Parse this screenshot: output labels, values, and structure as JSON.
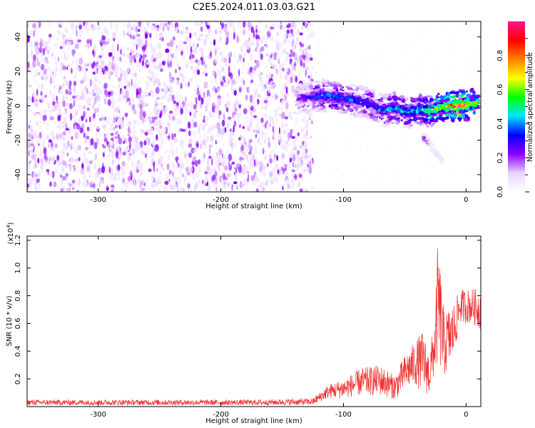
{
  "title": "C2E5.2024.011.03.03.G21",
  "chart_data": [
    {
      "type": "heatmap",
      "name": "spectrogram",
      "xlabel": "Height of straight line (km)",
      "ylabel": "Frequency (Hz)",
      "xlim": [
        -358,
        12
      ],
      "ylim": [
        -50,
        49
      ],
      "xticks": [
        -300,
        -200,
        -100,
        0
      ],
      "yticks": [
        -40,
        -20,
        0,
        20,
        40
      ],
      "colorbar": {
        "label": "Normalized spectral amplitude",
        "range": [
          0,
          1
        ],
        "ticks": [
          0.0,
          0.2,
          0.4,
          0.6,
          0.8
        ],
        "tick_labels": [
          "0.0",
          "0.2",
          "0.4",
          "0.6",
          "0.8"
        ],
        "colors": [
          "#ffffff",
          "#e8d4ff",
          "#8b00ff",
          "#0000ff",
          "#00e5ff",
          "#00ff00",
          "#ffff00",
          "#ff7f00",
          "#ff0000",
          "#ff1493"
        ]
      },
      "noise_region": {
        "x_range": [
          -358,
          -125
        ],
        "freq_range": [
          -50,
          49
        ]
      },
      "signal_track": [
        {
          "x": -138,
          "freq": 4,
          "amp": 0.22
        },
        {
          "x": -128,
          "freq": 5,
          "amp": 0.3
        },
        {
          "x": -118,
          "freq": 6,
          "amp": 0.4
        },
        {
          "x": -108,
          "freq": 5,
          "amp": 0.42
        },
        {
          "x": -98,
          "freq": 4,
          "amp": 0.38
        },
        {
          "x": -88,
          "freq": 3,
          "amp": 0.35
        },
        {
          "x": -78,
          "freq": 1,
          "amp": 0.36
        },
        {
          "x": -68,
          "freq": -3,
          "amp": 0.4
        },
        {
          "x": -58,
          "freq": -1,
          "amp": 0.44
        },
        {
          "x": -48,
          "freq": -4,
          "amp": 0.46
        },
        {
          "x": -38,
          "freq": -2,
          "amp": 0.5
        },
        {
          "x": -30,
          "freq": -3,
          "amp": 0.58
        },
        {
          "x": -22,
          "freq": -1,
          "amp": 0.7
        },
        {
          "x": -14,
          "freq": 0,
          "amp": 0.82
        },
        {
          "x": -6,
          "freq": 0,
          "amp": 0.92
        },
        {
          "x": 2,
          "freq": 1,
          "amp": 0.8
        },
        {
          "x": 10,
          "freq": 2,
          "amp": 0.6
        }
      ],
      "secondary_track": [
        {
          "x": -36,
          "freq": -17,
          "amp": 0.4
        },
        {
          "x": -30,
          "freq": -22,
          "amp": 0.12
        },
        {
          "x": -25,
          "freq": -27,
          "amp": 0.1
        },
        {
          "x": -19,
          "freq": -32,
          "amp": 0.1
        }
      ]
    },
    {
      "type": "line",
      "name": "snr",
      "xlabel": "Height of straight line (km)",
      "ylabel": "SNR (10 * v/v)",
      "scale_label": "(x10",
      "scale_exponent": "4",
      "scale_close": ")",
      "xlim": [
        -358,
        12
      ],
      "ylim": [
        0,
        1.23
      ],
      "xticks": [
        -300,
        -200,
        -100,
        0
      ],
      "yticks": [
        0.2,
        0.4,
        0.6,
        0.8,
        1.0,
        1.2
      ],
      "line_color": "#ee3030",
      "envelope": [
        {
          "x": -358,
          "base": 0.01,
          "amp": 0.04
        },
        {
          "x": -170,
          "base": 0.01,
          "amp": 0.04
        },
        {
          "x": -125,
          "base": 0.01,
          "amp": 0.05
        },
        {
          "x": -112,
          "base": 0.06,
          "amp": 0.1
        },
        {
          "x": -100,
          "base": 0.06,
          "amp": 0.14
        },
        {
          "x": -85,
          "base": 0.08,
          "amp": 0.2
        },
        {
          "x": -70,
          "base": 0.08,
          "amp": 0.22
        },
        {
          "x": -58,
          "base": 0.05,
          "amp": 0.18
        },
        {
          "x": -50,
          "base": 0.12,
          "amp": 0.25
        },
        {
          "x": -42,
          "base": 0.15,
          "amp": 0.32
        },
        {
          "x": -35,
          "base": 0.1,
          "amp": 0.45
        },
        {
          "x": -30,
          "base": 0.08,
          "amp": 0.3
        },
        {
          "x": -25,
          "base": 0.25,
          "amp": 0.45
        },
        {
          "x": -23,
          "base": 0.3,
          "amp": 0.92
        },
        {
          "x": -18,
          "base": 0.2,
          "amp": 0.48
        },
        {
          "x": -10,
          "base": 0.35,
          "amp": 0.4
        },
        {
          "x": -5,
          "base": 0.6,
          "amp": 0.25
        },
        {
          "x": 5,
          "base": 0.6,
          "amp": 0.25
        },
        {
          "x": 12,
          "base": 0.55,
          "amp": 0.3
        }
      ]
    }
  ]
}
